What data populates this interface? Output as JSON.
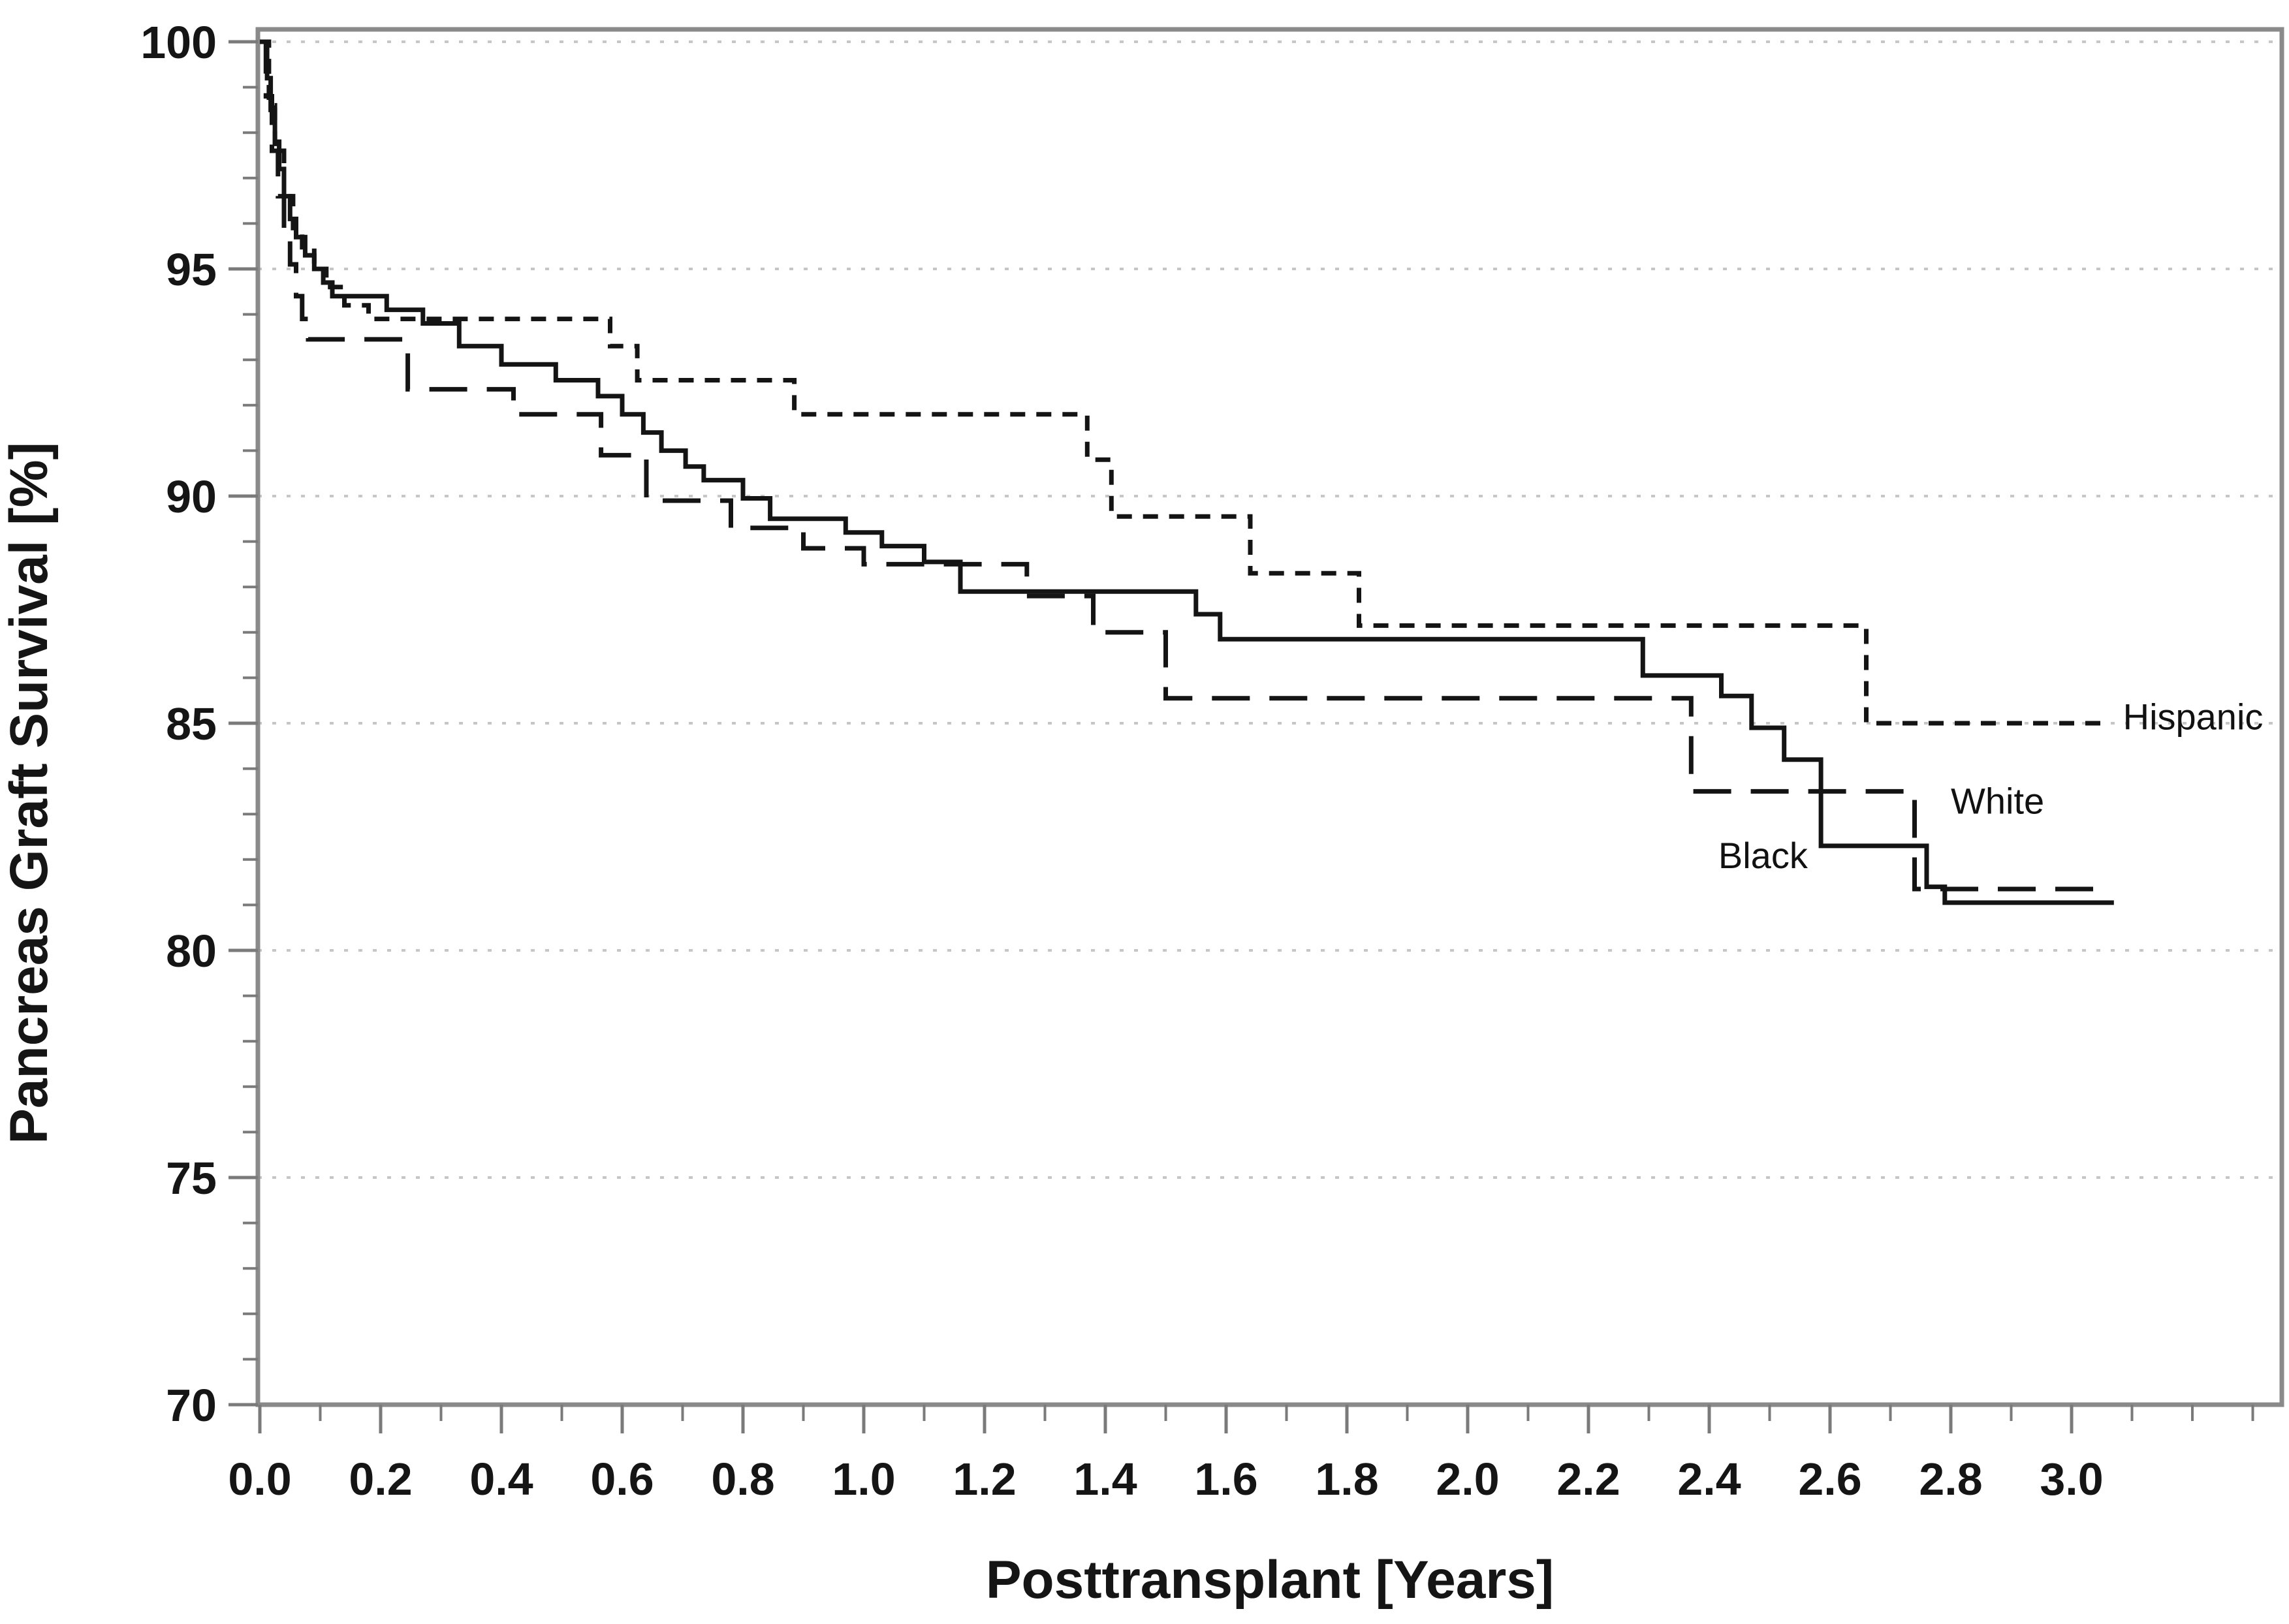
{
  "figure": {
    "kind": "kaplan-meier survival plot",
    "background": "#ffffff",
    "axis_color": "#8a8a8a",
    "gridline_color": "#c6c6c6",
    "curve_color": "#141414"
  },
  "chart_data": {
    "type": "line",
    "subtype": "step-survival",
    "title": "",
    "xlabel": "Posttransplant [Years]",
    "ylabel": "Pancreas Graft Survival [%]",
    "xlim": [
      0,
      3.35
    ],
    "ylim": [
      70,
      100.3
    ],
    "grid": "horizontal dotted at major y ticks",
    "legend_position": "inline labels at right end of curves",
    "x_tick_labels": [
      "0.0",
      "0.2",
      "0.4",
      "0.6",
      "0.8",
      "1.0",
      "1.2",
      "1.4",
      "1.6",
      "1.8",
      "2.0",
      "2.2",
      "2.4",
      "2.6",
      "2.8",
      "3.0"
    ],
    "x_ticks_major": [
      0.0,
      0.2,
      0.4,
      0.6,
      0.8,
      1.0,
      1.2,
      1.4,
      1.6,
      1.8,
      2.0,
      2.2,
      2.4,
      2.6,
      2.8,
      3.0
    ],
    "x_minor_step": 0.1,
    "x_minor_max": 3.3,
    "y_tick_labels": [
      "70",
      "75",
      "80",
      "85",
      "90",
      "95",
      "100"
    ],
    "y_ticks_major": [
      70,
      75,
      80,
      85,
      90,
      95,
      100
    ],
    "y_minor_step": 1,
    "y_gridlines": [
      70,
      75,
      80,
      85,
      90,
      95,
      100
    ],
    "series": [
      {
        "name": "Black",
        "dash": "solid",
        "end": 3.07,
        "label_at": [
          2.415,
          82.1
        ],
        "points": [
          [
            0,
            100
          ],
          [
            0.012,
            99.2
          ],
          [
            0.018,
            98.5
          ],
          [
            0.025,
            97.8
          ],
          [
            0.032,
            97.2
          ],
          [
            0.04,
            96.6
          ],
          [
            0.05,
            96.1
          ],
          [
            0.06,
            95.7
          ],
          [
            0.075,
            95.3
          ],
          [
            0.09,
            95.0
          ],
          [
            0.105,
            94.7
          ],
          [
            0.12,
            94.4
          ],
          [
            0.21,
            94.1
          ],
          [
            0.27,
            93.8
          ],
          [
            0.33,
            93.3
          ],
          [
            0.4,
            92.9
          ],
          [
            0.49,
            92.55
          ],
          [
            0.56,
            92.2
          ],
          [
            0.6,
            91.8
          ],
          [
            0.635,
            91.4
          ],
          [
            0.665,
            91.0
          ],
          [
            0.705,
            90.65
          ],
          [
            0.735,
            90.35
          ],
          [
            0.8,
            89.95
          ],
          [
            0.845,
            89.5
          ],
          [
            0.97,
            89.2
          ],
          [
            1.03,
            88.9
          ],
          [
            1.1,
            88.55
          ],
          [
            1.16,
            87.9
          ],
          [
            1.55,
            87.4
          ],
          [
            1.59,
            86.85
          ],
          [
            2.29,
            86.05
          ],
          [
            2.42,
            85.6
          ],
          [
            2.47,
            84.9
          ],
          [
            2.524,
            84.2
          ],
          [
            2.585,
            82.3
          ],
          [
            2.76,
            81.4
          ],
          [
            2.79,
            81.05
          ]
        ]
      },
      {
        "name": "White",
        "dash": "long-dash",
        "end": 3.05,
        "label_at": [
          2.8,
          83.3
        ],
        "points": [
          [
            0,
            100
          ],
          [
            0.01,
            98.8
          ],
          [
            0.02,
            97.6
          ],
          [
            0.03,
            96.6
          ],
          [
            0.04,
            95.8
          ],
          [
            0.05,
            95.1
          ],
          [
            0.06,
            94.4
          ],
          [
            0.07,
            93.9
          ],
          [
            0.08,
            93.45
          ],
          [
            0.245,
            92.35
          ],
          [
            0.42,
            91.8
          ],
          [
            0.565,
            90.9
          ],
          [
            0.64,
            89.9
          ],
          [
            0.78,
            89.3
          ],
          [
            0.9,
            88.85
          ],
          [
            1.0,
            88.5
          ],
          [
            1.27,
            87.8
          ],
          [
            1.38,
            87.0
          ],
          [
            1.5,
            85.55
          ],
          [
            2.37,
            83.5
          ],
          [
            2.74,
            81.35
          ]
        ]
      },
      {
        "name": "Hispanic",
        "dash": "short-dash",
        "end": 3.06,
        "label_at": [
          3.085,
          85.15
        ],
        "points": [
          [
            0,
            100
          ],
          [
            0.015,
            98.6
          ],
          [
            0.025,
            97.6
          ],
          [
            0.04,
            96.6
          ],
          [
            0.055,
            95.9
          ],
          [
            0.07,
            95.4
          ],
          [
            0.09,
            95.0
          ],
          [
            0.11,
            94.6
          ],
          [
            0.14,
            94.2
          ],
          [
            0.18,
            93.9
          ],
          [
            0.58,
            93.3
          ],
          [
            0.625,
            92.55
          ],
          [
            0.885,
            91.8
          ],
          [
            1.37,
            90.8
          ],
          [
            1.41,
            89.55
          ],
          [
            1.64,
            88.3
          ],
          [
            1.82,
            87.15
          ],
          [
            2.66,
            85.0
          ]
        ]
      }
    ]
  }
}
